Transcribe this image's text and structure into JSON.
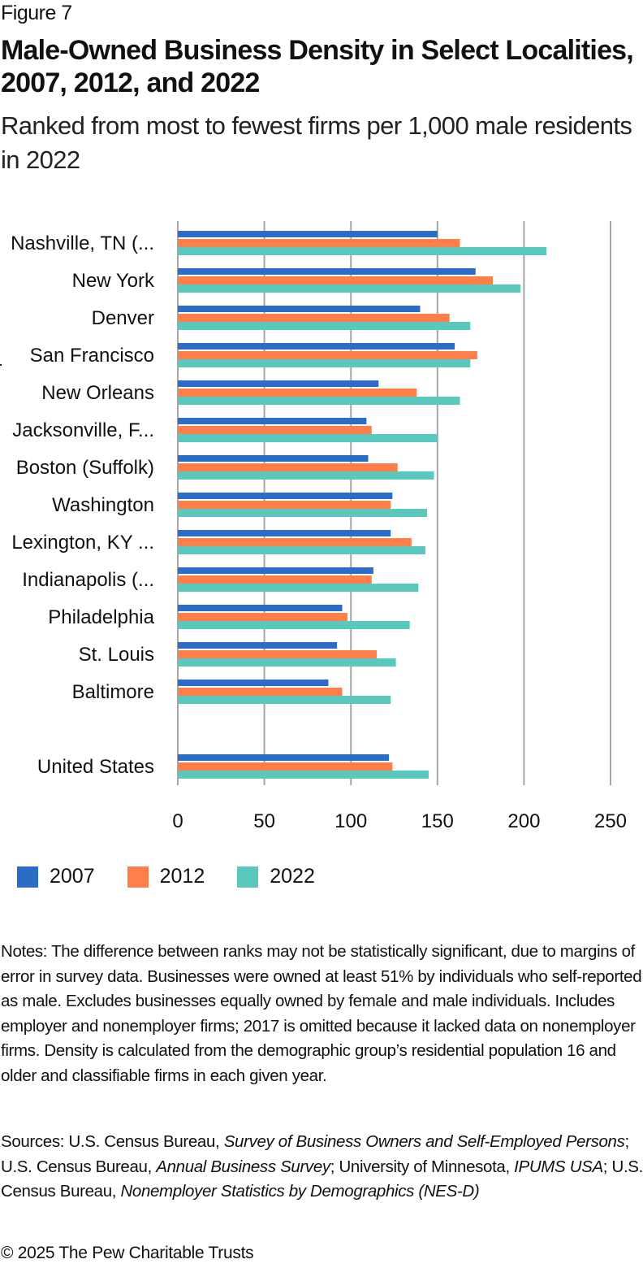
{
  "figure_label": "Figure 7",
  "title": "Male-Owned Business Density in Select Localities, 2007, 2012, and 2022",
  "subtitle": "Ranked from most to fewest firms per 1,000 male residents in 2022",
  "chart_data": {
    "type": "bar",
    "orientation": "horizontal",
    "title": "Male-Owned Business Density in Select Localities, 2007, 2012, and 2022",
    "subtitle": "Ranked from most to fewest firms per 1,000 male residents in 2022",
    "xlabel": "",
    "ylabel": "",
    "xlim": [
      0,
      250
    ],
    "xticks": [
      0,
      50,
      100,
      150,
      200,
      250
    ],
    "grid": true,
    "legend_position": "bottom-left",
    "categories": [
      "Nashville, TN (...",
      "New York",
      "Denver",
      "San Francisco",
      "New Orleans",
      "Jacksonville, F...",
      "Boston (Suffolk)",
      "Washington",
      "Lexington, KY ...",
      "Indianapolis (...",
      "Philadelphia",
      "St. Louis",
      "Baltimore",
      "",
      "United States"
    ],
    "series": [
      {
        "name": "2007",
        "color": "#2B6CC4",
        "values": [
          150,
          172,
          140,
          160,
          116,
          109,
          110,
          124,
          123,
          113,
          95,
          92,
          87,
          null,
          122
        ]
      },
      {
        "name": "2012",
        "color": "#FF7F4A",
        "values": [
          163,
          182,
          157,
          173,
          138,
          112,
          127,
          123,
          135,
          112,
          98,
          115,
          95,
          null,
          124
        ]
      },
      {
        "name": "2022",
        "color": "#5BC8BE",
        "values": [
          213,
          198,
          169,
          169,
          163,
          150,
          148,
          144,
          143,
          139,
          134,
          126,
          123,
          null,
          145
        ]
      }
    ]
  },
  "legend": [
    {
      "label": "2007",
      "color": "#2B6CC4"
    },
    {
      "label": "2012",
      "color": "#FF7F4A"
    },
    {
      "label": "2022",
      "color": "#5BC8BE"
    }
  ],
  "notes": "Notes: The difference between ranks may not be statistically significant, due to margins of error in survey data. Businesses were owned at least 51% by individuals who self-reported as male. Excludes businesses equally owned by female and male individuals. Includes employer and nonemployer firms; 2017 is omitted because it lacked data on nonemployer firms. Density is calculated from the demographic group’s residential population 16 and older and classifiable firms in each given year.",
  "sources": {
    "prefix": "Sources: U.S. Census Bureau, ",
    "s1": "Survey of Business Owners and Self-Employed Persons",
    "t1": "; U.S. Census Bureau, ",
    "s2": "Annual Business Survey",
    "t2": "; University of Minnesota, ",
    "s3": "IPUMS USA",
    "t3": "; U.S. Census Bureau, ",
    "s4": "Nonemployer Statistics by Demographics (NES-D)"
  },
  "copyright": "© 2025 The Pew Charitable Trusts"
}
